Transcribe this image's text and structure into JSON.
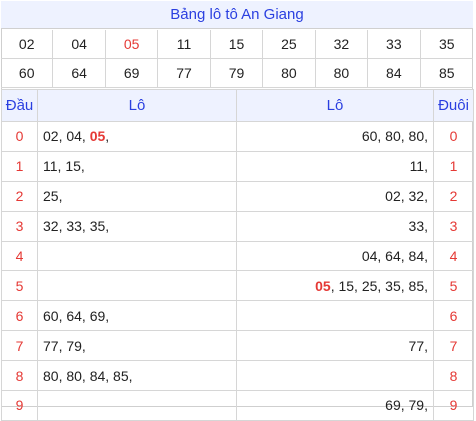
{
  "title": "Bảng lô tô An Giang",
  "numbers_row1": [
    "02",
    "04",
    "05",
    "11",
    "15",
    "25",
    "32",
    "33",
    "35"
  ],
  "numbers_row2": [
    "60",
    "64",
    "69",
    "77",
    "79",
    "80",
    "80",
    "84",
    "85"
  ],
  "highlight_number": "05",
  "headers": {
    "dau": "Đầu",
    "lo_left": "Lô",
    "lo_right": "Lô",
    "duoi": "Đuôi"
  },
  "rows": [
    {
      "dau": "0",
      "left": "02, 04, 05,",
      "right": "60, 80, 80,",
      "duoi": "0"
    },
    {
      "dau": "1",
      "left": "11, 15,",
      "right": "11,",
      "duoi": "1"
    },
    {
      "dau": "2",
      "left": "25,",
      "right": "02, 32,",
      "duoi": "2"
    },
    {
      "dau": "3",
      "left": "32, 33, 35,",
      "right": "33,",
      "duoi": "3"
    },
    {
      "dau": "4",
      "left": "",
      "right": "04, 64, 84,",
      "duoi": "4"
    },
    {
      "dau": "5",
      "left": "",
      "right": "05, 15, 25, 35, 85,",
      "duoi": "5"
    },
    {
      "dau": "6",
      "left": "60, 64, 69,",
      "right": "",
      "duoi": "6"
    },
    {
      "dau": "7",
      "left": "77, 79,",
      "right": "77,",
      "duoi": "7"
    },
    {
      "dau": "8",
      "left": "80, 80, 84, 85,",
      "right": "",
      "duoi": "8"
    },
    {
      "dau": "9",
      "left": "",
      "right": "69, 79,",
      "duoi": "9"
    }
  ],
  "colors": {
    "accent": "#2a3fe0",
    "highlight": "#e53935",
    "header_bg": "#eef2ff"
  }
}
